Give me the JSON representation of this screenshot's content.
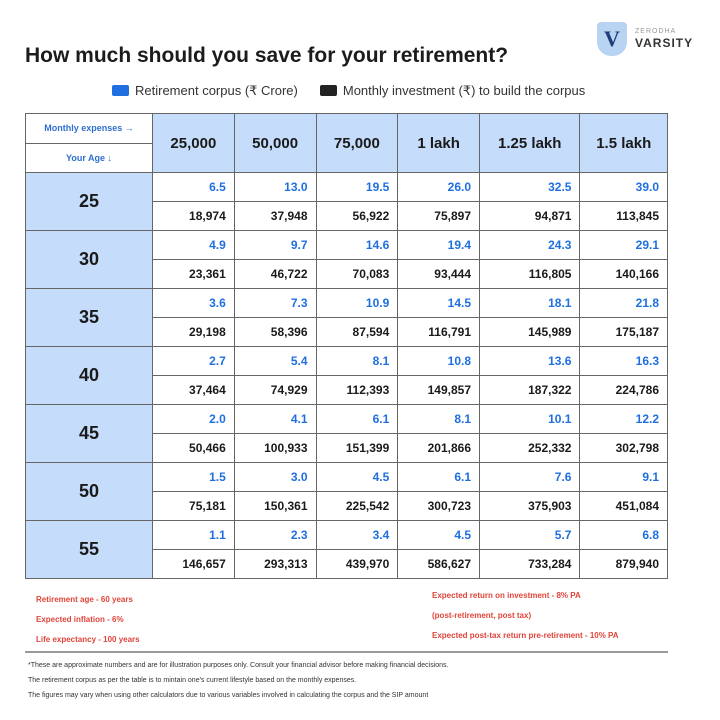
{
  "title": "How much should you save for your retirement?",
  "logo": {
    "company": "ZERODHA",
    "name": "VARSITY",
    "letter": "V"
  },
  "legend": [
    {
      "label": "Retirement corpus (₹ Crore)",
      "color": "#1f6fe0"
    },
    {
      "label": "Monthly investment (₹) to build the corpus",
      "color": "#222222"
    }
  ],
  "table": {
    "corner_top": "Monthly expenses →",
    "corner_bottom": "Your Age ↓",
    "columns": [
      "25,000",
      "50,000",
      "75,000",
      "1 lakh",
      "1.25 lakh",
      "1.5 lakh"
    ],
    "rows": [
      {
        "age": "25",
        "corpus": [
          "6.5",
          "13.0",
          "19.5",
          "26.0",
          "32.5",
          "39.0"
        ],
        "monthly": [
          "18,974",
          "37,948",
          "56,922",
          "75,897",
          "94,871",
          "113,845"
        ]
      },
      {
        "age": "30",
        "corpus": [
          "4.9",
          "9.7",
          "14.6",
          "19.4",
          "24.3",
          "29.1"
        ],
        "monthly": [
          "23,361",
          "46,722",
          "70,083",
          "93,444",
          "116,805",
          "140,166"
        ]
      },
      {
        "age": "35",
        "corpus": [
          "3.6",
          "7.3",
          "10.9",
          "14.5",
          "18.1",
          "21.8"
        ],
        "monthly": [
          "29,198",
          "58,396",
          "87,594",
          "116,791",
          "145,989",
          "175,187"
        ]
      },
      {
        "age": "40",
        "corpus": [
          "2.7",
          "5.4",
          "8.1",
          "10.8",
          "13.6",
          "16.3"
        ],
        "monthly": [
          "37,464",
          "74,929",
          "112,393",
          "149,857",
          "187,322",
          "224,786"
        ]
      },
      {
        "age": "45",
        "corpus": [
          "2.0",
          "4.1",
          "6.1",
          "8.1",
          "10.1",
          "12.2"
        ],
        "monthly": [
          "50,466",
          "100,933",
          "151,399",
          "201,866",
          "252,332",
          "302,798"
        ]
      },
      {
        "age": "50",
        "corpus": [
          "1.5",
          "3.0",
          "4.5",
          "6.1",
          "7.6",
          "9.1"
        ],
        "monthly": [
          "75,181",
          "150,361",
          "225,542",
          "300,723",
          "375,903",
          "451,084"
        ]
      },
      {
        "age": "55",
        "corpus": [
          "1.1",
          "2.3",
          "3.4",
          "4.5",
          "5.7",
          "6.8"
        ],
        "monthly": [
          "146,657",
          "293,313",
          "439,970",
          "586,627",
          "733,284",
          "879,940"
        ]
      }
    ]
  },
  "assumptions_left": [
    "Retirement age - 60 years",
    "Expected inflation - 6%",
    "Life expectancy - 100 years"
  ],
  "assumptions_right": [
    "Expected return on investment - 8% PA",
    "(post-retirement, post tax)",
    "Expected post-tax return pre-retirement - 10% PA"
  ],
  "disclaimers": [
    "*These are approximate numbers and are for illustration purposes only. Consult your financial advisor before making financial decisions.",
    "The retirement corpus as per the table is to mintain one's current lifestyle based on the monthly expenses.",
    "The figures may vary when using other calculators due to various variables involved in calculating the corpus and the SIP amount"
  ]
}
